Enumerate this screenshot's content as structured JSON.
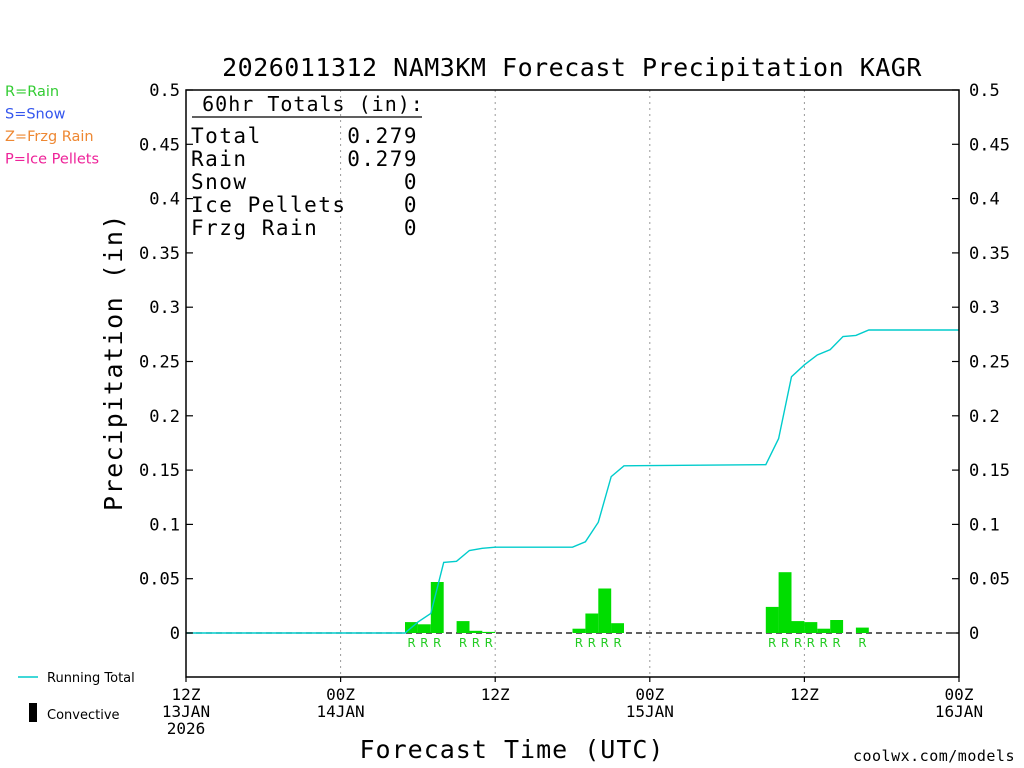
{
  "chart_data": {
    "type": "bar",
    "title": "2026011312 NAM3KM Forecast Precipitation KAGR",
    "ylabel": "Precipitation (in)",
    "xlabel": "Forecast Time (UTC)",
    "ylim": [
      -0.04,
      0.5
    ],
    "yticks": [
      "0",
      "0.05",
      "0.1",
      "0.15",
      "0.2",
      "0.25",
      "0.3",
      "0.35",
      "0.4",
      "0.45",
      "0.5"
    ],
    "ytick_values": [
      0,
      0.05,
      0.1,
      0.15,
      0.2,
      0.25,
      0.3,
      0.35,
      0.4,
      0.45,
      0.5
    ],
    "xlim_hours": [
      0,
      60
    ],
    "xticks": [
      {
        "hour": 0,
        "line1": "12Z",
        "line2": "13JAN",
        "line3": "2026"
      },
      {
        "hour": 12,
        "line1": "00Z",
        "line2": "14JAN",
        "line3": ""
      },
      {
        "hour": 24,
        "line1": "12Z",
        "line2": "",
        "line3": ""
      },
      {
        "hour": 36,
        "line1": "00Z",
        "line2": "15JAN",
        "line3": ""
      },
      {
        "hour": 48,
        "line1": "12Z",
        "line2": "",
        "line3": ""
      },
      {
        "hour": 60,
        "line1": "00Z",
        "line2": "16JAN",
        "line3": ""
      }
    ],
    "bars": [
      {
        "hour": 18,
        "value": 0.01,
        "ptype": "R"
      },
      {
        "hour": 19,
        "value": 0.008,
        "ptype": "R"
      },
      {
        "hour": 20,
        "value": 0.047,
        "ptype": "R"
      },
      {
        "hour": 22,
        "value": 0.011,
        "ptype": "R"
      },
      {
        "hour": 23,
        "value": 0.002,
        "ptype": "R"
      },
      {
        "hour": 24,
        "value": 0.001,
        "ptype": "R"
      },
      {
        "hour": 31,
        "value": 0.004,
        "ptype": "R"
      },
      {
        "hour": 32,
        "value": 0.018,
        "ptype": "R"
      },
      {
        "hour": 33,
        "value": 0.041,
        "ptype": "R"
      },
      {
        "hour": 34,
        "value": 0.009,
        "ptype": "R"
      },
      {
        "hour": 46,
        "value": 0.024,
        "ptype": "R"
      },
      {
        "hour": 47,
        "value": 0.056,
        "ptype": "R"
      },
      {
        "hour": 48,
        "value": 0.011,
        "ptype": "R"
      },
      {
        "hour": 49,
        "value": 0.01,
        "ptype": "R"
      },
      {
        "hour": 50,
        "value": 0.004,
        "ptype": "R"
      },
      {
        "hour": 51,
        "value": 0.012,
        "ptype": "R"
      },
      {
        "hour": 53,
        "value": 0.005,
        "ptype": "R"
      }
    ],
    "running_total": [
      [
        0,
        0
      ],
      [
        17,
        0
      ],
      [
        18,
        0.01
      ],
      [
        19,
        0.018
      ],
      [
        20,
        0.065
      ],
      [
        21,
        0.066
      ],
      [
        22,
        0.076
      ],
      [
        23,
        0.078
      ],
      [
        24,
        0.079
      ],
      [
        30,
        0.079
      ],
      [
        31,
        0.084
      ],
      [
        32,
        0.102
      ],
      [
        33,
        0.144
      ],
      [
        34,
        0.154
      ],
      [
        45,
        0.155
      ],
      [
        46,
        0.179
      ],
      [
        47,
        0.236
      ],
      [
        48,
        0.247
      ],
      [
        49,
        0.256
      ],
      [
        50,
        0.261
      ],
      [
        51,
        0.273
      ],
      [
        52,
        0.274
      ],
      [
        53,
        0.279
      ],
      [
        60,
        0.279
      ]
    ],
    "totals_box": {
      "heading": "60hr Totals (in):",
      "rows": [
        {
          "label": "Total",
          "value": "0.279"
        },
        {
          "label": "Rain",
          "value": "0.279"
        },
        {
          "label": "Snow",
          "value": "0"
        },
        {
          "label": "Ice Pellets",
          "value": "0"
        },
        {
          "label": "Frzg Rain",
          "value": "0"
        }
      ]
    },
    "ptype_legend": [
      {
        "text": "R=Rain",
        "color": "#33cc33"
      },
      {
        "text": "S=Snow",
        "color": "#3355ee"
      },
      {
        "text": "Z=Frzg Rain",
        "color": "#ee8833"
      },
      {
        "text": "P=Ice Pellets",
        "color": "#ee2299"
      }
    ],
    "line_legend": {
      "running_total": "Running Total",
      "convective": "Convective"
    },
    "colors": {
      "bar": "#00dd00",
      "running_total": "#00cccc",
      "rain_marker": "#22cc22",
      "grid": "#999999"
    }
  },
  "credit": "coolwx.com/models"
}
